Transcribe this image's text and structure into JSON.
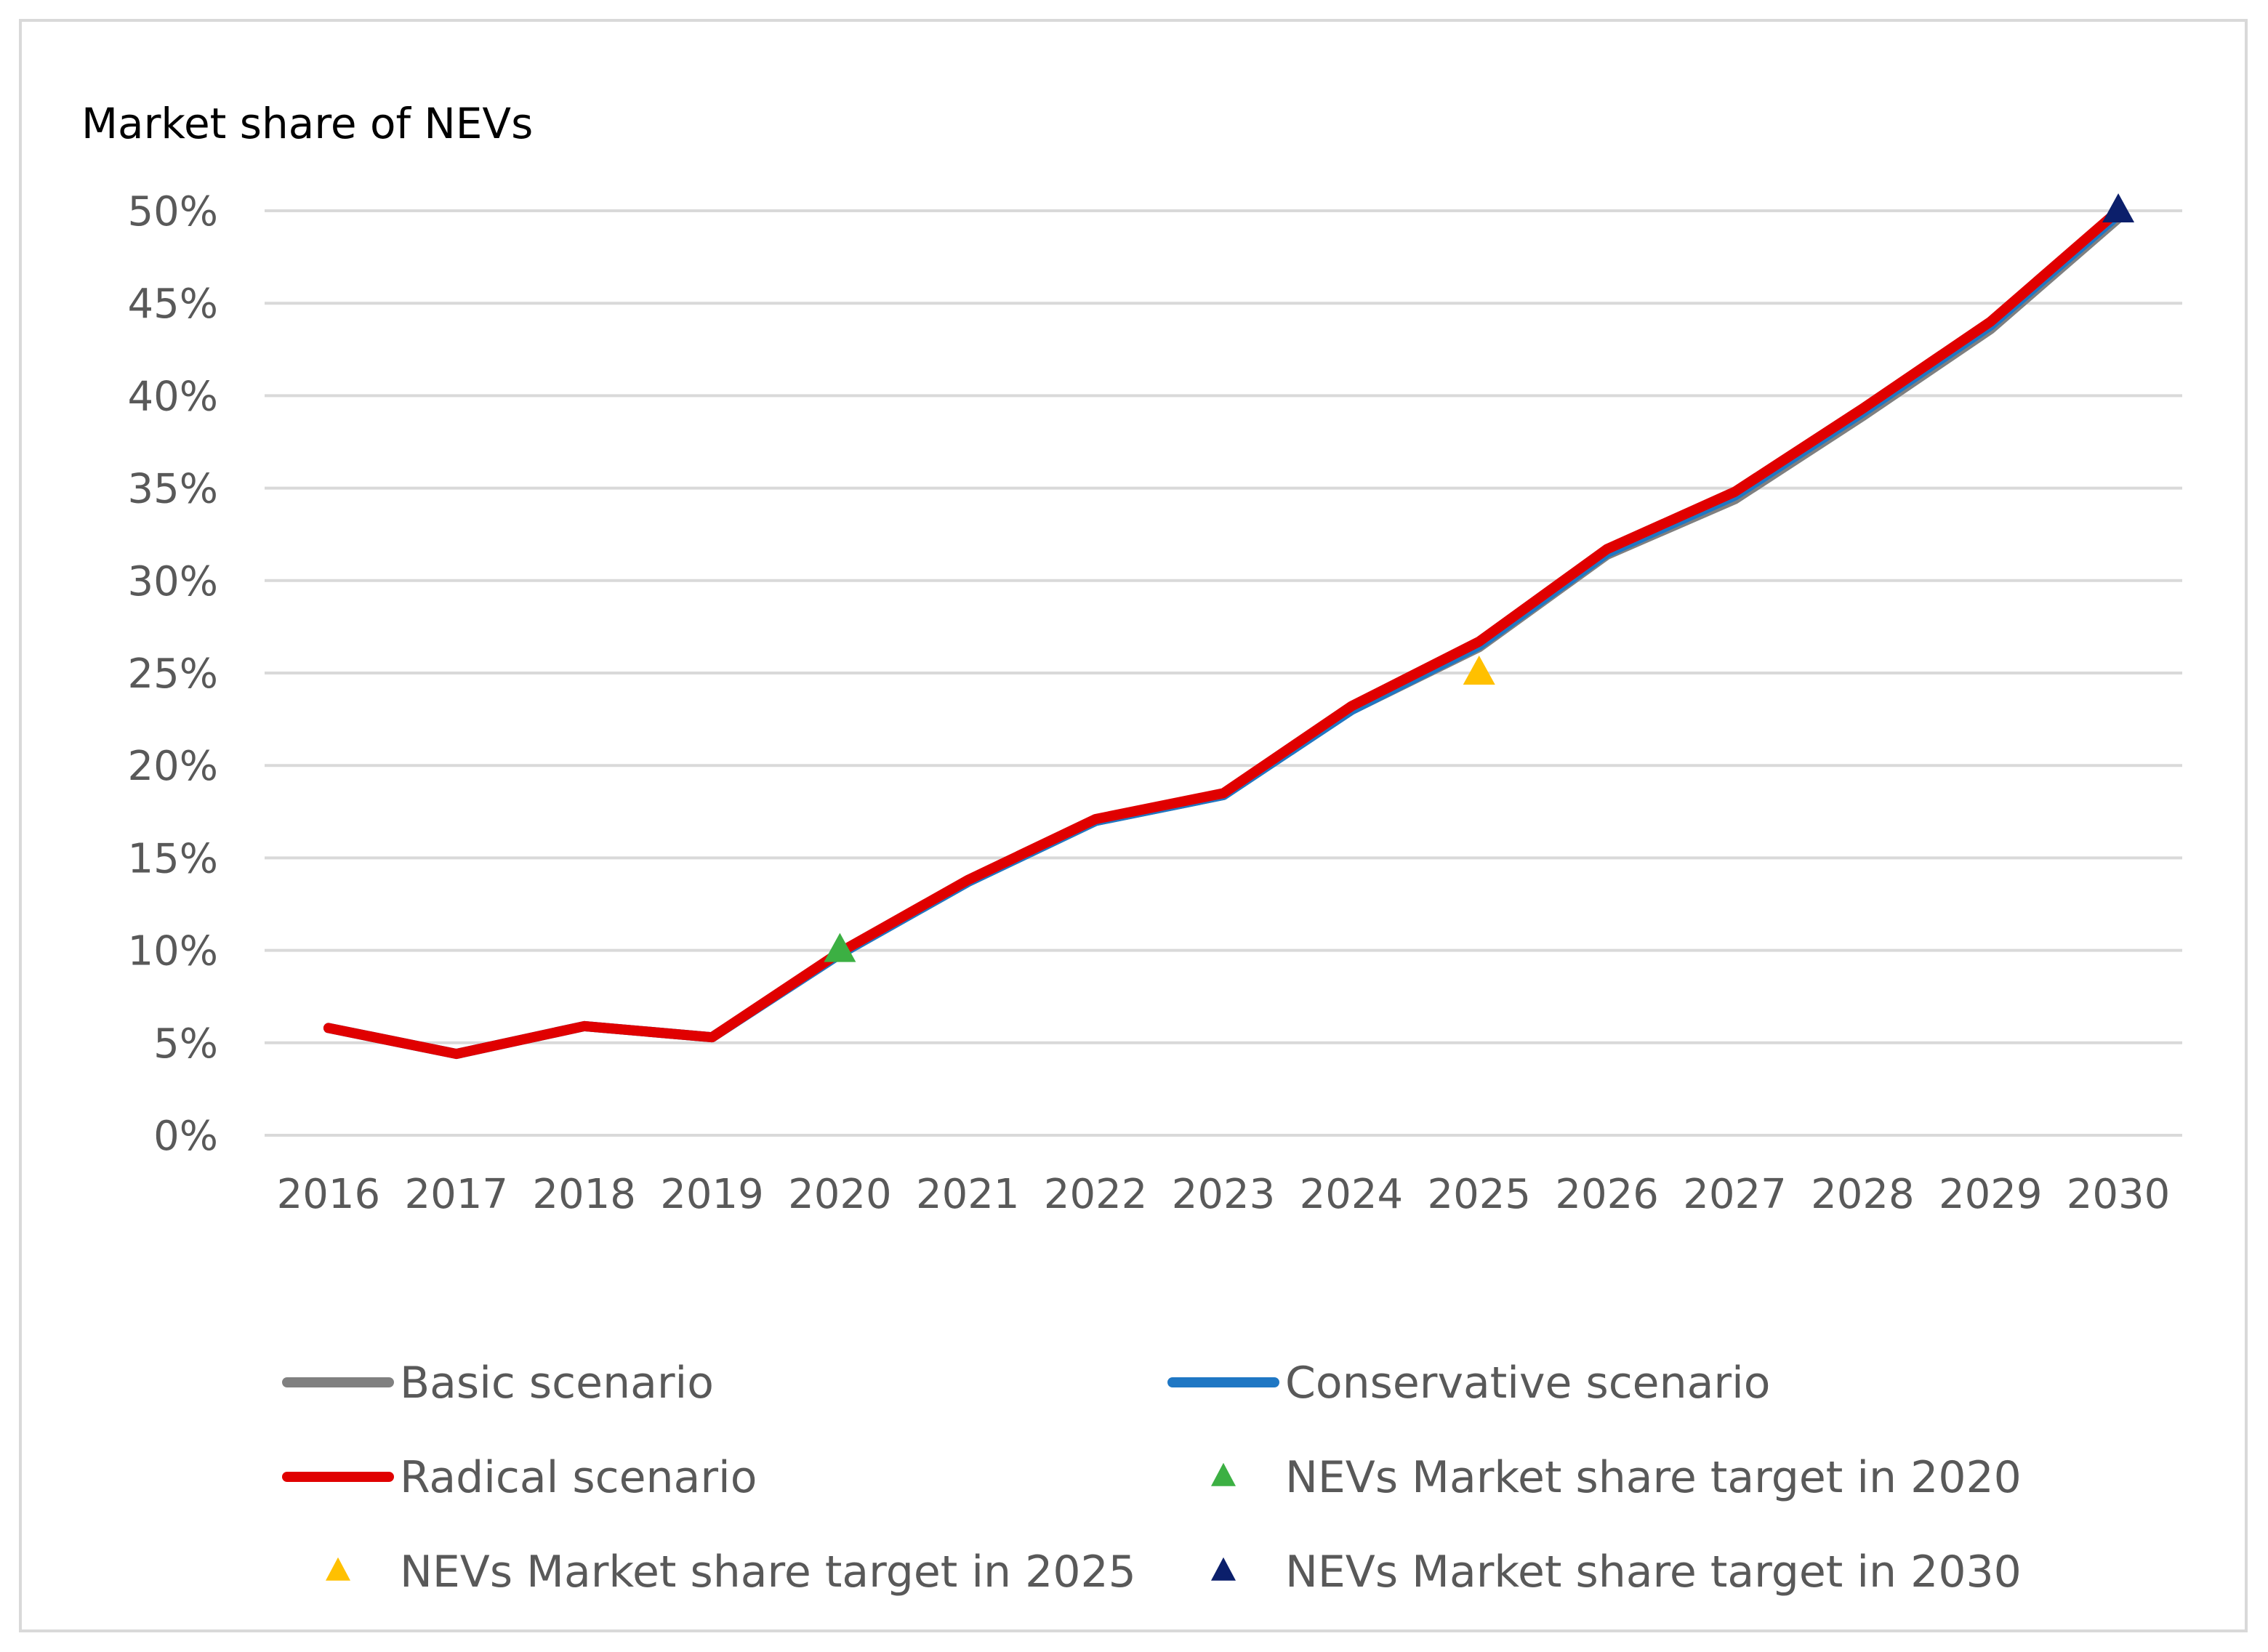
{
  "chart_data": {
    "type": "line",
    "title": "Market share of NEVs",
    "xlabel": "",
    "ylabel": "",
    "categories": [
      "2016",
      "2017",
      "2018",
      "2019",
      "2020",
      "2021",
      "2022",
      "2023",
      "2024",
      "2025",
      "2026",
      "2027",
      "2028",
      "2029",
      "2030"
    ],
    "ylim": [
      0,
      50
    ],
    "yticks": [
      0,
      5,
      10,
      15,
      20,
      25,
      30,
      35,
      40,
      45,
      50
    ],
    "ytick_labels": [
      "0%",
      "5%",
      "10%",
      "15%",
      "20%",
      "25%",
      "30%",
      "35%",
      "40%",
      "45%",
      "50%"
    ],
    "grid": true,
    "legend_position": "bottom",
    "series": [
      {
        "name": "Basic scenario",
        "color": "#808080",
        "values": [
          5.8,
          4.4,
          5.9,
          5.3,
          9.8,
          13.7,
          17.0,
          18.4,
          23.0,
          26.4,
          31.4,
          34.4,
          38.9,
          43.6,
          49.6
        ]
      },
      {
        "name": "Conservative scenario",
        "color": "#1F77C4",
        "values": [
          5.8,
          4.4,
          5.9,
          5.3,
          9.8,
          13.7,
          17.0,
          18.4,
          23.0,
          26.5,
          31.5,
          34.6,
          39.1,
          43.8,
          49.8
        ]
      },
      {
        "name": "Radical scenario",
        "color": "#E00000",
        "values": [
          5.8,
          4.4,
          5.9,
          5.3,
          9.9,
          13.8,
          17.1,
          18.5,
          23.2,
          26.7,
          31.7,
          34.8,
          39.3,
          44.0,
          50.0
        ]
      }
    ],
    "markers": [
      {
        "name": "NEVs Market share target in 2020",
        "x": "2020",
        "value": 10,
        "color": "#3CB043"
      },
      {
        "name": "NEVs Market share target in 2025",
        "x": "2025",
        "value": 25,
        "color": "#FFC000"
      },
      {
        "name": "NEVs Market share target in 2030",
        "x": "2030",
        "value": 50,
        "color": "#0B1F6B"
      }
    ]
  }
}
